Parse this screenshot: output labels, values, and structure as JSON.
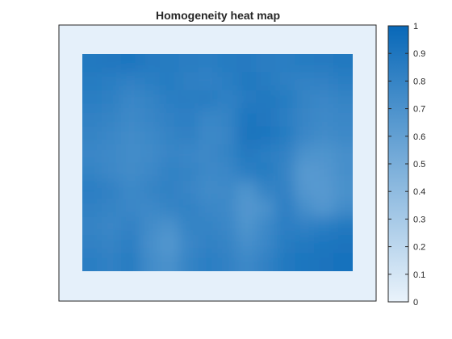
{
  "chart_data": {
    "type": "heatmap",
    "title": "Homogeneity heat map",
    "xlabel": "",
    "ylabel": "",
    "x_ticks": [],
    "y_ticks": [],
    "grid": false,
    "colormap": [
      "#eaf3fb",
      "#0868b8"
    ],
    "clim": [
      0,
      1
    ],
    "colorbar": {
      "location": "right",
      "ticks": [
        0,
        0.1,
        0.2,
        0.3,
        0.4,
        0.5,
        0.6,
        0.7,
        0.8,
        0.9,
        1
      ],
      "tick_labels": [
        "0",
        "0.1",
        "0.2",
        "0.3",
        "0.4",
        "0.5",
        "0.6",
        "0.7",
        "0.8",
        "0.9",
        "1"
      ]
    },
    "border_value": 0.02,
    "rows": [
      [
        0.88,
        0.89,
        0.9,
        0.87,
        0.86,
        0.85,
        0.84,
        0.86,
        0.87,
        0.85,
        0.84,
        0.86,
        0.87,
        0.88
      ],
      [
        0.86,
        0.84,
        0.82,
        0.84,
        0.86,
        0.83,
        0.82,
        0.84,
        0.88,
        0.86,
        0.83,
        0.81,
        0.82,
        0.84
      ],
      [
        0.84,
        0.83,
        0.78,
        0.8,
        0.84,
        0.85,
        0.86,
        0.82,
        0.87,
        0.88,
        0.86,
        0.8,
        0.78,
        0.8
      ],
      [
        0.82,
        0.8,
        0.76,
        0.79,
        0.82,
        0.84,
        0.78,
        0.8,
        0.9,
        0.89,
        0.84,
        0.79,
        0.76,
        0.78
      ],
      [
        0.8,
        0.78,
        0.74,
        0.76,
        0.8,
        0.83,
        0.76,
        0.79,
        0.92,
        0.9,
        0.86,
        0.78,
        0.74,
        0.76
      ],
      [
        0.78,
        0.76,
        0.74,
        0.75,
        0.79,
        0.78,
        0.77,
        0.8,
        0.88,
        0.84,
        0.82,
        0.7,
        0.68,
        0.72
      ],
      [
        0.8,
        0.77,
        0.74,
        0.77,
        0.81,
        0.8,
        0.76,
        0.78,
        0.84,
        0.86,
        0.8,
        0.64,
        0.66,
        0.72
      ],
      [
        0.84,
        0.82,
        0.76,
        0.8,
        0.82,
        0.79,
        0.74,
        0.76,
        0.68,
        0.8,
        0.82,
        0.66,
        0.64,
        0.7
      ],
      [
        0.82,
        0.8,
        0.78,
        0.76,
        0.8,
        0.81,
        0.78,
        0.76,
        0.66,
        0.7,
        0.84,
        0.72,
        0.66,
        0.74
      ],
      [
        0.8,
        0.78,
        0.82,
        0.74,
        0.7,
        0.8,
        0.8,
        0.78,
        0.68,
        0.76,
        0.84,
        0.82,
        0.84,
        0.88
      ],
      [
        0.82,
        0.8,
        0.84,
        0.72,
        0.66,
        0.78,
        0.82,
        0.8,
        0.72,
        0.78,
        0.86,
        0.88,
        0.9,
        0.92
      ],
      [
        0.84,
        0.82,
        0.86,
        0.74,
        0.7,
        0.8,
        0.84,
        0.82,
        0.76,
        0.82,
        0.88,
        0.9,
        0.92,
        0.93
      ]
    ]
  }
}
